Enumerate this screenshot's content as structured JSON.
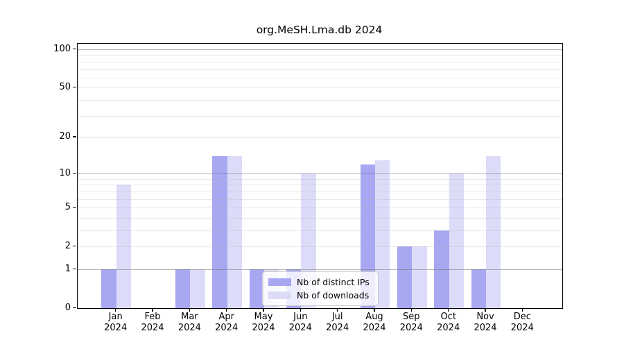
{
  "chart_data": {
    "type": "bar",
    "title": "org.MeSH.Lma.db 2024",
    "categories": [
      "Jan",
      "Feb",
      "Mar",
      "Apr",
      "May",
      "Jun",
      "Jul",
      "Aug",
      "Sep",
      "Oct",
      "Nov",
      "Dec"
    ],
    "category_year": "2024",
    "series": [
      {
        "name": "Nb of distinct IPs",
        "color": "#a7a7f2",
        "values": [
          1,
          0,
          1,
          14,
          1,
          1,
          0,
          12,
          2,
          3,
          1,
          0
        ]
      },
      {
        "name": "Nb of downloads",
        "color": "#dcdcf9",
        "values": [
          8,
          0,
          1,
          14,
          1,
          10,
          0,
          13,
          2,
          10,
          14,
          0
        ]
      }
    ],
    "yscale": "log1p",
    "ylim": [
      0,
      100
    ],
    "yticks": [
      0,
      1,
      2,
      5,
      10,
      20,
      50,
      100
    ],
    "major_gridlines": [
      1,
      10,
      100
    ],
    "minor_gridlines": [
      2,
      3,
      4,
      5,
      6,
      7,
      8,
      9,
      20,
      30,
      40,
      50,
      60,
      70,
      80,
      90
    ],
    "grid": "horizontal",
    "legend_position": "inside-bottom-center"
  }
}
